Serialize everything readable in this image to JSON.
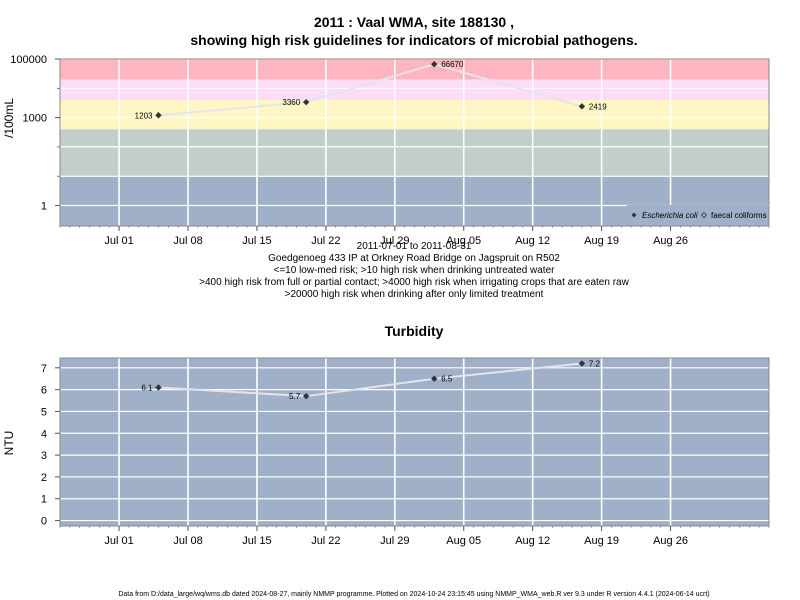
{
  "chart_data": [
    {
      "type": "line",
      "title_line1": "2011 : Vaal WMA, site 188130 ,",
      "title_line2": "showing high risk guidelines for indicators of microbial pathogens.",
      "ylabel": "/100mL",
      "y_scale": "log",
      "ylim": [
        0.2,
        100000
      ],
      "yticks": [
        1,
        1000,
        100000
      ],
      "ytick_labels": [
        "1",
        "1000",
        "100000"
      ],
      "xlim": [
        "2011-06-25",
        "2011-09-05"
      ],
      "xticks": [
        "2011-07-01",
        "2011-07-08",
        "2011-07-15",
        "2011-07-22",
        "2011-07-29",
        "2011-08-05",
        "2011-08-12",
        "2011-08-19",
        "2011-08-26"
      ],
      "xtick_labels": [
        "Jul 01",
        "Jul 08",
        "Jul 15",
        "Jul 22",
        "Jul 29",
        "Aug 05",
        "Aug 12",
        "Aug 19",
        "Aug 26"
      ],
      "bands": [
        {
          "from": 0.2,
          "to": 10,
          "color": "#a0b0c8",
          "label": "<=10 low-med risk"
        },
        {
          "from": 10,
          "to": 400,
          "color": "#c2cec7",
          "label": ">10 high risk when drinking untreated water"
        },
        {
          "from": 400,
          "to": 4000,
          "color": "#fff6c4",
          "label": ">400 high risk from full or partial contact"
        },
        {
          "from": 4000,
          "to": 20000,
          "color": "#fcdcf6",
          "label": ">4000 high risk when irrigating crops that are eaten raw"
        },
        {
          "from": 20000,
          "to": 100000,
          "color": "#ffb5c0",
          "label": ">20000 high risk when drinking after only limited treatment"
        }
      ],
      "grid": true,
      "legend_position": "bottom-right",
      "series": [
        {
          "name": "Escherichia coli",
          "marker": "filled-diamond",
          "color": "#333333",
          "points": [
            {
              "x": "2011-07-05",
              "y": 1203,
              "label": "1203"
            },
            {
              "x": "2011-07-20",
              "y": 3360,
              "label": "3360"
            },
            {
              "x": "2011-08-02",
              "y": 66670,
              "label": "66670"
            },
            {
              "x": "2011-08-17",
              "y": 2419,
              "label": "2419"
            }
          ]
        },
        {
          "name": "faecal coliforms",
          "marker": "open-diamond",
          "color": "#333333",
          "points": []
        }
      ],
      "caption": [
        "2011-07-01 to 2011-08-31",
        "Goedgenoeg 433 IP at Orkney Road Bridge on Jagspruit on R502",
        "<=10 low-med risk; >10 high risk when drinking untreated water",
        ">400 high risk from full or partial contact; >4000 high risk when irrigating crops that are eaten raw",
        ">20000 high risk when drinking after only limited treatment"
      ]
    },
    {
      "type": "line",
      "title": "Turbidity",
      "ylabel": "NTU",
      "ylim": [
        -0.25,
        7.45
      ],
      "yticks": [
        0,
        1,
        2,
        3,
        4,
        5,
        6,
        7
      ],
      "ytick_labels": [
        "0",
        "1",
        "2",
        "3",
        "4",
        "5",
        "6",
        "7"
      ],
      "xlim": [
        "2011-06-25",
        "2011-09-05"
      ],
      "xticks": [
        "2011-07-01",
        "2011-07-08",
        "2011-07-15",
        "2011-07-22",
        "2011-07-29",
        "2011-08-05",
        "2011-08-12",
        "2011-08-19",
        "2011-08-26"
      ],
      "xtick_labels": [
        "Jul 01",
        "Jul 08",
        "Jul 15",
        "Jul 22",
        "Jul 29",
        "Aug 05",
        "Aug 12",
        "Aug 19",
        "Aug 26"
      ],
      "background": "#a0b0c8",
      "grid": true,
      "series": [
        {
          "marker": "filled-diamond",
          "color": "#333333",
          "points": [
            {
              "x": "2011-07-05",
              "y": 6.1,
              "label": "6.1"
            },
            {
              "x": "2011-07-20",
              "y": 5.7,
              "label": "5.7"
            },
            {
              "x": "2011-08-02",
              "y": 6.5,
              "label": "6.5"
            },
            {
              "x": "2011-08-17",
              "y": 7.2,
              "label": "7.2"
            }
          ]
        }
      ]
    }
  ],
  "footer": "Data from D:/data_large/wq/wms.db dated 2024-08-27, mainly NMMP programme. Plotted on 2024-10-24 23:15:45 using NMMP_WMA_web.R ver 9.3 under R version 4.4.1 (2024-06-14 ucrt)"
}
